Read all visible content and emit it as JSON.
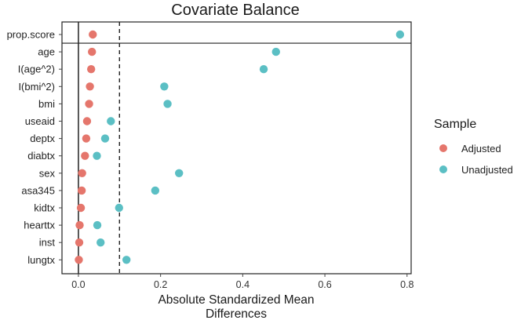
{
  "chart_data": {
    "type": "scatter",
    "title": "Covariate Balance",
    "xlabel": [
      "Absolute Standardized Mean",
      "Differences"
    ],
    "ylabel": "",
    "xlim": [
      -0.04,
      0.81
    ],
    "xticks": [
      0.0,
      0.2,
      0.4,
      0.6,
      0.8
    ],
    "xtick_labels": [
      "0.0",
      "0.2",
      "0.4",
      "0.6",
      "0.8"
    ],
    "threshold": 0.1,
    "grid": false,
    "legend": {
      "title": "Sample",
      "position": "right",
      "entries": [
        {
          "name": "Adjusted",
          "color": "#E5766C"
        },
        {
          "name": "Unadjusted",
          "color": "#5BBFC4"
        }
      ]
    },
    "categories": [
      "prop.score",
      "age",
      "I(age^2)",
      "I(bmi^2)",
      "bmi",
      "useaid",
      "deptx",
      "diabtx",
      "sex",
      "asa345",
      "kidtx",
      "hearttx",
      "inst",
      "lungtx"
    ],
    "series": [
      {
        "name": "Adjusted",
        "color": "#E5766C",
        "values": [
          0.035,
          0.033,
          0.031,
          0.028,
          0.026,
          0.021,
          0.019,
          0.016,
          0.009,
          0.008,
          0.006,
          0.003,
          0.002,
          0.001
        ]
      },
      {
        "name": "Unadjusted",
        "color": "#5BBFC4",
        "values": [
          0.783,
          0.481,
          0.451,
          0.209,
          0.217,
          0.079,
          0.065,
          0.045,
          0.245,
          0.187,
          0.099,
          0.046,
          0.054,
          0.117
        ]
      }
    ]
  }
}
